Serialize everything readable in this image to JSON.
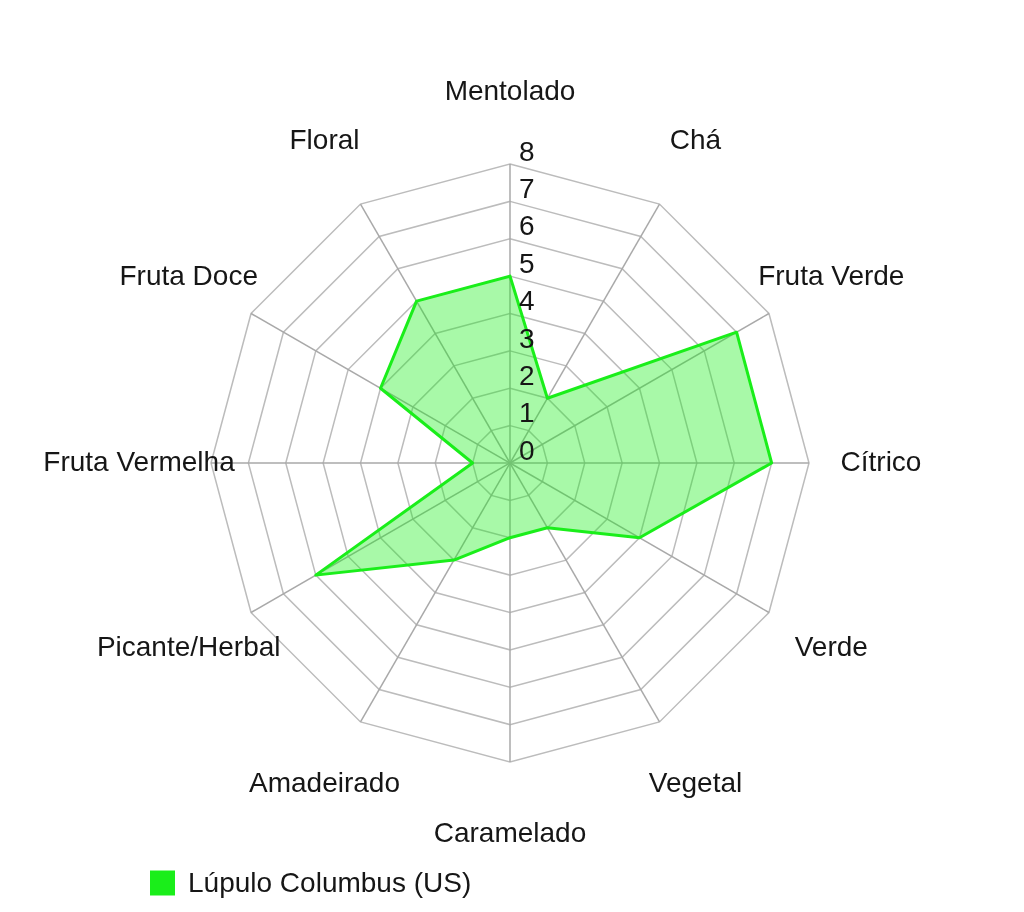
{
  "chart_data": {
    "type": "radar",
    "categories": [
      "Mentolado",
      "Chá",
      "Fruta Verde",
      "Cítrico",
      "Verde",
      "Vegetal",
      "Caramelado",
      "Amadeirado",
      "Picante/Herbal",
      "Fruta Vermelha",
      "Fruta Doce",
      "Floral"
    ],
    "series": [
      {
        "name": "Lúpulo Columbus (US)",
        "color": "#1aee1a",
        "values": [
          5,
          2,
          7,
          7,
          4,
          2,
          2,
          3,
          6,
          1,
          4,
          5
        ]
      }
    ],
    "ylim": [
      0,
      8
    ],
    "yticks": [
      0,
      1,
      2,
      3,
      4,
      5,
      6,
      7,
      8
    ],
    "grid": true,
    "legend": "bottom left",
    "marker": "none"
  }
}
